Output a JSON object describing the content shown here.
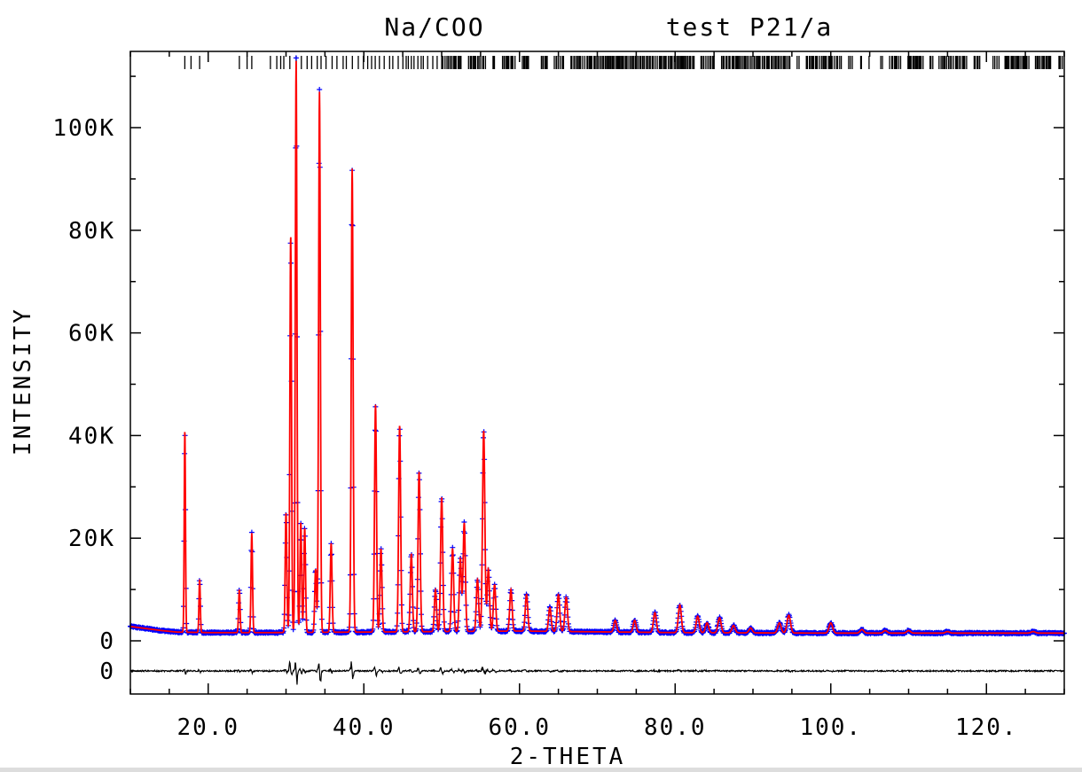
{
  "chart_data": {
    "type": "line",
    "title_left": "Na/COO",
    "title_right": "test P21/a",
    "xlabel": "2-THETA",
    "ylabel": "INTENSITY",
    "xlim": [
      10,
      130
    ],
    "ylim": [
      -10000,
      114000
    ],
    "x_ticks": [
      20,
      40,
      60,
      80,
      100,
      120
    ],
    "x_tick_labels": [
      "20.0",
      "40.0",
      "60.0",
      "80.0",
      "100.",
      "120."
    ],
    "y_ticks": [
      0,
      20000,
      40000,
      60000,
      80000,
      100000
    ],
    "y_tick_labels": [
      "0",
      "20K",
      "40K",
      "60K",
      "80K",
      "100K"
    ],
    "diff_zero_label": "0",
    "background": {
      "x": [
        10,
        14,
        16,
        20,
        28,
        40,
        60,
        80,
        100,
        130
      ],
      "y": [
        2800,
        2000,
        1700,
        1600,
        1600,
        1700,
        1900,
        1600,
        1500,
        1500
      ]
    },
    "peaks": [
      {
        "x": 17.0,
        "y": 41000
      },
      {
        "x": 18.9,
        "y": 12000
      },
      {
        "x": 24.0,
        "y": 10000
      },
      {
        "x": 25.6,
        "y": 21000
      },
      {
        "x": 30.0,
        "y": 25000
      },
      {
        "x": 30.6,
        "y": 79000
      },
      {
        "x": 31.3,
        "y": 113000
      },
      {
        "x": 31.9,
        "y": 23000
      },
      {
        "x": 32.4,
        "y": 22000
      },
      {
        "x": 33.8,
        "y": 14000
      },
      {
        "x": 34.3,
        "y": 107000
      },
      {
        "x": 35.8,
        "y": 19000
      },
      {
        "x": 38.5,
        "y": 92000
      },
      {
        "x": 41.5,
        "y": 46000
      },
      {
        "x": 42.2,
        "y": 18000
      },
      {
        "x": 44.6,
        "y": 42000
      },
      {
        "x": 46.1,
        "y": 17000
      },
      {
        "x": 47.1,
        "y": 33000
      },
      {
        "x": 49.2,
        "y": 10000
      },
      {
        "x": 50.0,
        "y": 28000
      },
      {
        "x": 51.4,
        "y": 18000
      },
      {
        "x": 52.4,
        "y": 16000
      },
      {
        "x": 52.9,
        "y": 23000
      },
      {
        "x": 54.6,
        "y": 12000
      },
      {
        "x": 55.4,
        "y": 41000
      },
      {
        "x": 56.0,
        "y": 14000
      },
      {
        "x": 56.8,
        "y": 11000
      },
      {
        "x": 58.9,
        "y": 10000
      },
      {
        "x": 60.9,
        "y": 9000
      },
      {
        "x": 63.9,
        "y": 6500
      },
      {
        "x": 65.0,
        "y": 9000
      },
      {
        "x": 66.0,
        "y": 8500
      },
      {
        "x": 72.3,
        "y": 4000
      },
      {
        "x": 74.8,
        "y": 4000
      },
      {
        "x": 77.4,
        "y": 5500
      },
      {
        "x": 80.6,
        "y": 7000
      },
      {
        "x": 82.9,
        "y": 4800
      },
      {
        "x": 84.1,
        "y": 3500
      },
      {
        "x": 85.7,
        "y": 4500
      },
      {
        "x": 87.5,
        "y": 3000
      },
      {
        "x": 89.7,
        "y": 2500
      },
      {
        "x": 93.4,
        "y": 3500
      },
      {
        "x": 94.6,
        "y": 5000
      },
      {
        "x": 100.0,
        "y": 3500
      },
      {
        "x": 104.0,
        "y": 2200
      },
      {
        "x": 107.0,
        "y": 2000
      },
      {
        "x": 110.0,
        "y": 2000
      },
      {
        "x": 115.0,
        "y": 1800
      },
      {
        "x": 126.0,
        "y": 1800
      }
    ],
    "series": [
      {
        "name": "observed",
        "style": "plus-markers",
        "color": "#0000ff"
      },
      {
        "name": "calculated",
        "style": "line",
        "color": "#ff0000"
      },
      {
        "name": "difference",
        "style": "line",
        "color": "#000000"
      },
      {
        "name": "reflection positions",
        "style": "tick-marks",
        "color": "#000000"
      }
    ],
    "grid": false
  }
}
